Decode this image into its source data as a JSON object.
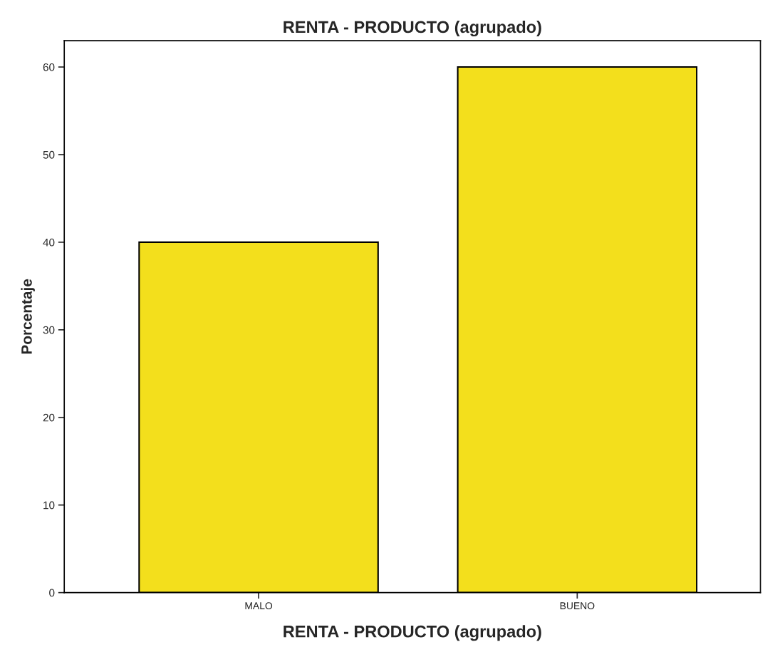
{
  "chart_data": {
    "type": "bar",
    "title": "RENTA - PRODUCTO (agrupado)",
    "xlabel": "RENTA - PRODUCTO (agrupado)",
    "ylabel": "Porcentaje",
    "categories": [
      "MALO",
      "BUENO"
    ],
    "values": [
      40,
      60
    ],
    "color": "#f3df1c",
    "ylim": [
      0,
      63
    ],
    "yticks": [
      0,
      10,
      20,
      30,
      40,
      50,
      60
    ],
    "grid": false,
    "legend": false
  }
}
